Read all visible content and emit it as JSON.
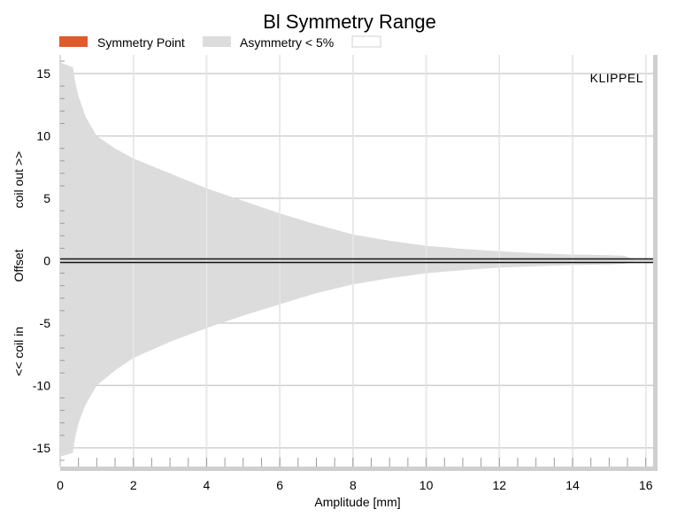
{
  "chart_data": {
    "type": "area",
    "title": "Bl Symmetry Range",
    "xlabel": "Amplitude [mm]",
    "ylabel": "Offset",
    "ylabel_upper": "coil out >>",
    "ylabel_lower": "<< coil in",
    "xlim": [
      0,
      16.2
    ],
    "ylim": [
      -16.5,
      16.5
    ],
    "xticks": [
      0,
      2,
      4,
      6,
      8,
      10,
      12,
      14,
      16
    ],
    "yticks": [
      15,
      10,
      5,
      0,
      -5,
      -10,
      -15
    ],
    "grid": true,
    "legend_position": "top",
    "legend": [
      {
        "name": "Symmetry Point",
        "color": "#e05a2b"
      },
      {
        "name": "Asymmetry < 5%",
        "color": "#dcdcdc"
      },
      {
        "name": "",
        "color": "#ffffff"
      }
    ],
    "symmetry_point": {
      "name": "Symmetry Point",
      "color": "#111111",
      "x": [
        0,
        16.2
      ],
      "y": [
        0,
        0
      ]
    },
    "series": [
      {
        "name": "Asymmetry < 5%",
        "color": "#dcdcdc",
        "x": [
          0,
          0.35,
          0.4,
          0.5,
          0.7,
          1.0,
          1.5,
          2.0,
          3.0,
          4.0,
          5.0,
          6.0,
          7.0,
          8.0,
          9.0,
          10.0,
          11.0,
          12.0,
          13.0,
          14.0,
          15.0,
          15.4,
          15.8
        ],
        "upper": [
          15.9,
          15.5,
          14.5,
          13.2,
          11.5,
          10.0,
          9.0,
          8.2,
          7.0,
          5.8,
          4.8,
          3.8,
          2.9,
          2.1,
          1.6,
          1.2,
          0.95,
          0.75,
          0.6,
          0.5,
          0.45,
          0.4,
          0.0
        ],
        "lower": [
          -15.7,
          -15.4,
          -14.3,
          -13.0,
          -11.5,
          -10.0,
          -8.8,
          -7.8,
          -6.5,
          -5.4,
          -4.4,
          -3.5,
          -2.6,
          -1.9,
          -1.4,
          -1.0,
          -0.75,
          -0.55,
          -0.45,
          -0.35,
          -0.3,
          -0.25,
          0.0
        ]
      }
    ]
  },
  "watermark": "KLIPPEL"
}
